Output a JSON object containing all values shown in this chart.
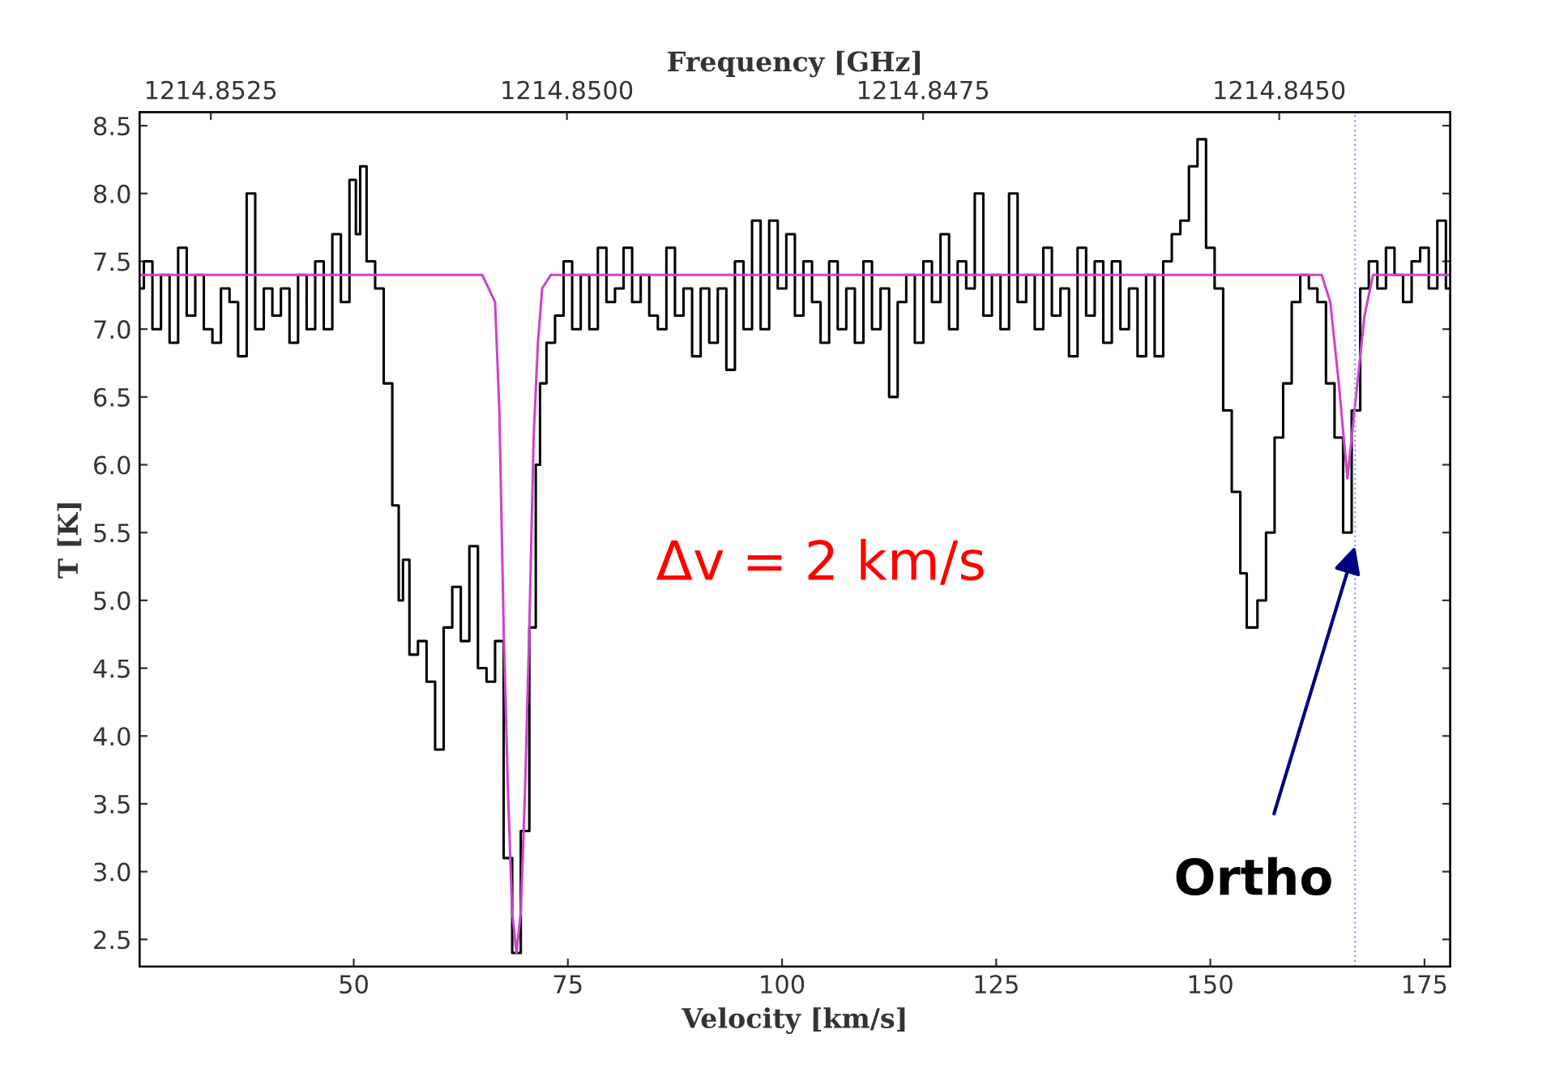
{
  "chart_data": {
    "type": "step",
    "xlabel": "Velocity [km/s]",
    "ylabel": "T [K]",
    "x2label": "Frequency [GHz]",
    "xlim": [
      25,
      178
    ],
    "xticks": [
      50,
      75,
      100,
      125,
      150,
      175
    ],
    "x2lim": [
      1214.853,
      1214.8438
    ],
    "x2ticks": [
      1214.8525,
      {
        "value": 1214.85,
        "label": "1214.8500"
      },
      1214.8475,
      {
        "value": 1214.845,
        "label": "1214.8450"
      }
    ],
    "ylim": [
      2.3,
      8.6
    ],
    "yticks": [
      {
        "value": 2.5,
        "label": "2.5"
      },
      {
        "value": 3,
        "label": "3.0"
      },
      {
        "value": 3.5,
        "label": "3.5"
      },
      {
        "value": 4,
        "label": "4.0"
      },
      {
        "value": 4.5,
        "label": "4.5"
      },
      {
        "value": 5,
        "label": "5.0"
      },
      {
        "value": 5.5,
        "label": "5.5"
      },
      {
        "value": 6,
        "label": "6.0"
      },
      {
        "value": 6.5,
        "label": "6.5"
      },
      {
        "value": 7,
        "label": "7.0"
      },
      {
        "value": 7.5,
        "label": "7.5"
      },
      {
        "value": 8,
        "label": "8.0"
      },
      {
        "value": 8.5,
        "label": "8.5"
      }
    ],
    "grid": false,
    "series": [
      {
        "color": "#000000",
        "x": [
          25,
          26,
          27,
          28,
          29,
          30,
          31,
          32,
          33,
          34,
          35,
          36,
          37,
          38,
          39,
          40,
          41,
          42,
          43,
          44,
          45,
          46,
          47,
          48,
          49,
          50,
          50.5,
          51,
          52,
          53,
          54,
          55,
          55.5,
          56,
          57,
          58,
          59,
          60,
          61,
          62,
          63,
          64,
          65,
          66,
          67,
          68,
          69,
          70,
          71,
          71.5,
          72,
          73,
          74,
          75,
          76,
          77,
          78,
          79,
          80,
          81,
          82,
          83,
          84,
          85,
          86,
          87,
          88,
          89,
          90,
          91,
          92,
          93,
          94,
          95,
          96,
          97,
          98,
          99,
          100,
          101,
          102,
          103,
          104,
          105,
          106,
          107,
          108,
          109,
          110,
          111,
          112,
          113,
          114,
          115,
          116,
          117,
          118,
          119,
          120,
          121,
          122,
          123,
          124,
          125,
          126,
          127,
          128,
          129,
          130,
          131,
          132,
          133,
          134,
          135,
          136,
          137,
          138,
          139,
          140,
          141,
          142,
          143,
          144,
          145,
          146,
          147,
          148,
          149,
          150,
          151,
          152,
          153,
          154,
          154.5,
          155,
          156,
          157,
          158,
          159,
          160,
          161,
          162,
          163,
          164,
          165,
          166,
          167,
          168,
          169,
          170,
          171,
          172,
          173,
          174,
          175,
          176,
          177,
          178
        ],
        "values": [
          7.3,
          7.5,
          7.0,
          7.4,
          6.9,
          7.6,
          7.1,
          7.4,
          7.0,
          6.9,
          7.3,
          7.2,
          6.8,
          8.0,
          7.0,
          7.3,
          7.1,
          7.3,
          6.9,
          7.4,
          7.0,
          7.5,
          7.0,
          7.7,
          7.2,
          8.1,
          7.7,
          8.2,
          7.5,
          7.3,
          6.6,
          5.7,
          5.0,
          5.3,
          4.6,
          4.7,
          4.4,
          3.9,
          4.8,
          5.1,
          4.7,
          5.4,
          4.5,
          4.4,
          4.7,
          3.1,
          2.4,
          3.3,
          4.8,
          6.0,
          6.6,
          6.9,
          7.1,
          7.5,
          7.0,
          7.4,
          7.0,
          7.6,
          7.2,
          7.3,
          7.6,
          7.2,
          7.4,
          7.1,
          7.0,
          7.6,
          7.1,
          7.3,
          6.8,
          7.3,
          6.9,
          7.3,
          6.7,
          7.5,
          7.0,
          7.8,
          7.0,
          7.8,
          7.3,
          7.7,
          7.1,
          7.5,
          7.2,
          6.9,
          7.5,
          7.0,
          7.3,
          6.9,
          7.5,
          7.0,
          7.3,
          6.5,
          7.2,
          7.4,
          6.9,
          7.5,
          7.2,
          7.7,
          7.0,
          7.5,
          7.3,
          8.0,
          7.1,
          7.4,
          7.0,
          8.0,
          7.2,
          7.4,
          7.0,
          7.6,
          7.1,
          7.3,
          6.8,
          7.6,
          7.1,
          7.5,
          6.9,
          7.5,
          7.0,
          7.3,
          6.8,
          7.4,
          6.8,
          7.5,
          7.7,
          7.8,
          8.2,
          8.4,
          7.6,
          7.3,
          6.4,
          5.8,
          5.2,
          4.8,
          4.8,
          5.0,
          5.5,
          6.2,
          6.6,
          7.2,
          7.4,
          7.3,
          7.2,
          6.6,
          6.2,
          5.5,
          6.4,
          7.3,
          7.5,
          7.3,
          7.6,
          7.4,
          7.2,
          7.5,
          7.6,
          7.3,
          7.8,
          7.3
        ]
      },
      {
        "type": "line",
        "color": "#cc44cc",
        "x": [
          25,
          65,
          66.5,
          67,
          67.5,
          68,
          68.5,
          69,
          69.5,
          70,
          70.5,
          71,
          71.5,
          72,
          73,
          163,
          164,
          165,
          166,
          167,
          168,
          169,
          178
        ],
        "values": [
          7.4,
          7.4,
          7.2,
          6.4,
          4.8,
          3.6,
          2.7,
          2.4,
          2.7,
          3.6,
          4.8,
          6.2,
          6.9,
          7.3,
          7.4,
          7.4,
          7.2,
          6.6,
          5.9,
          6.5,
          7.1,
          7.4,
          7.4
        ]
      }
    ],
    "ref_lines": [
      {
        "axis": "x",
        "value": 166.9,
        "color": "#9999ee",
        "line_style": "dotted"
      }
    ],
    "annotations": [
      "Δv = 2 km/s",
      {
        "text": "Ortho",
        "x": 166.9,
        "y": 5.4
      }
    ]
  }
}
